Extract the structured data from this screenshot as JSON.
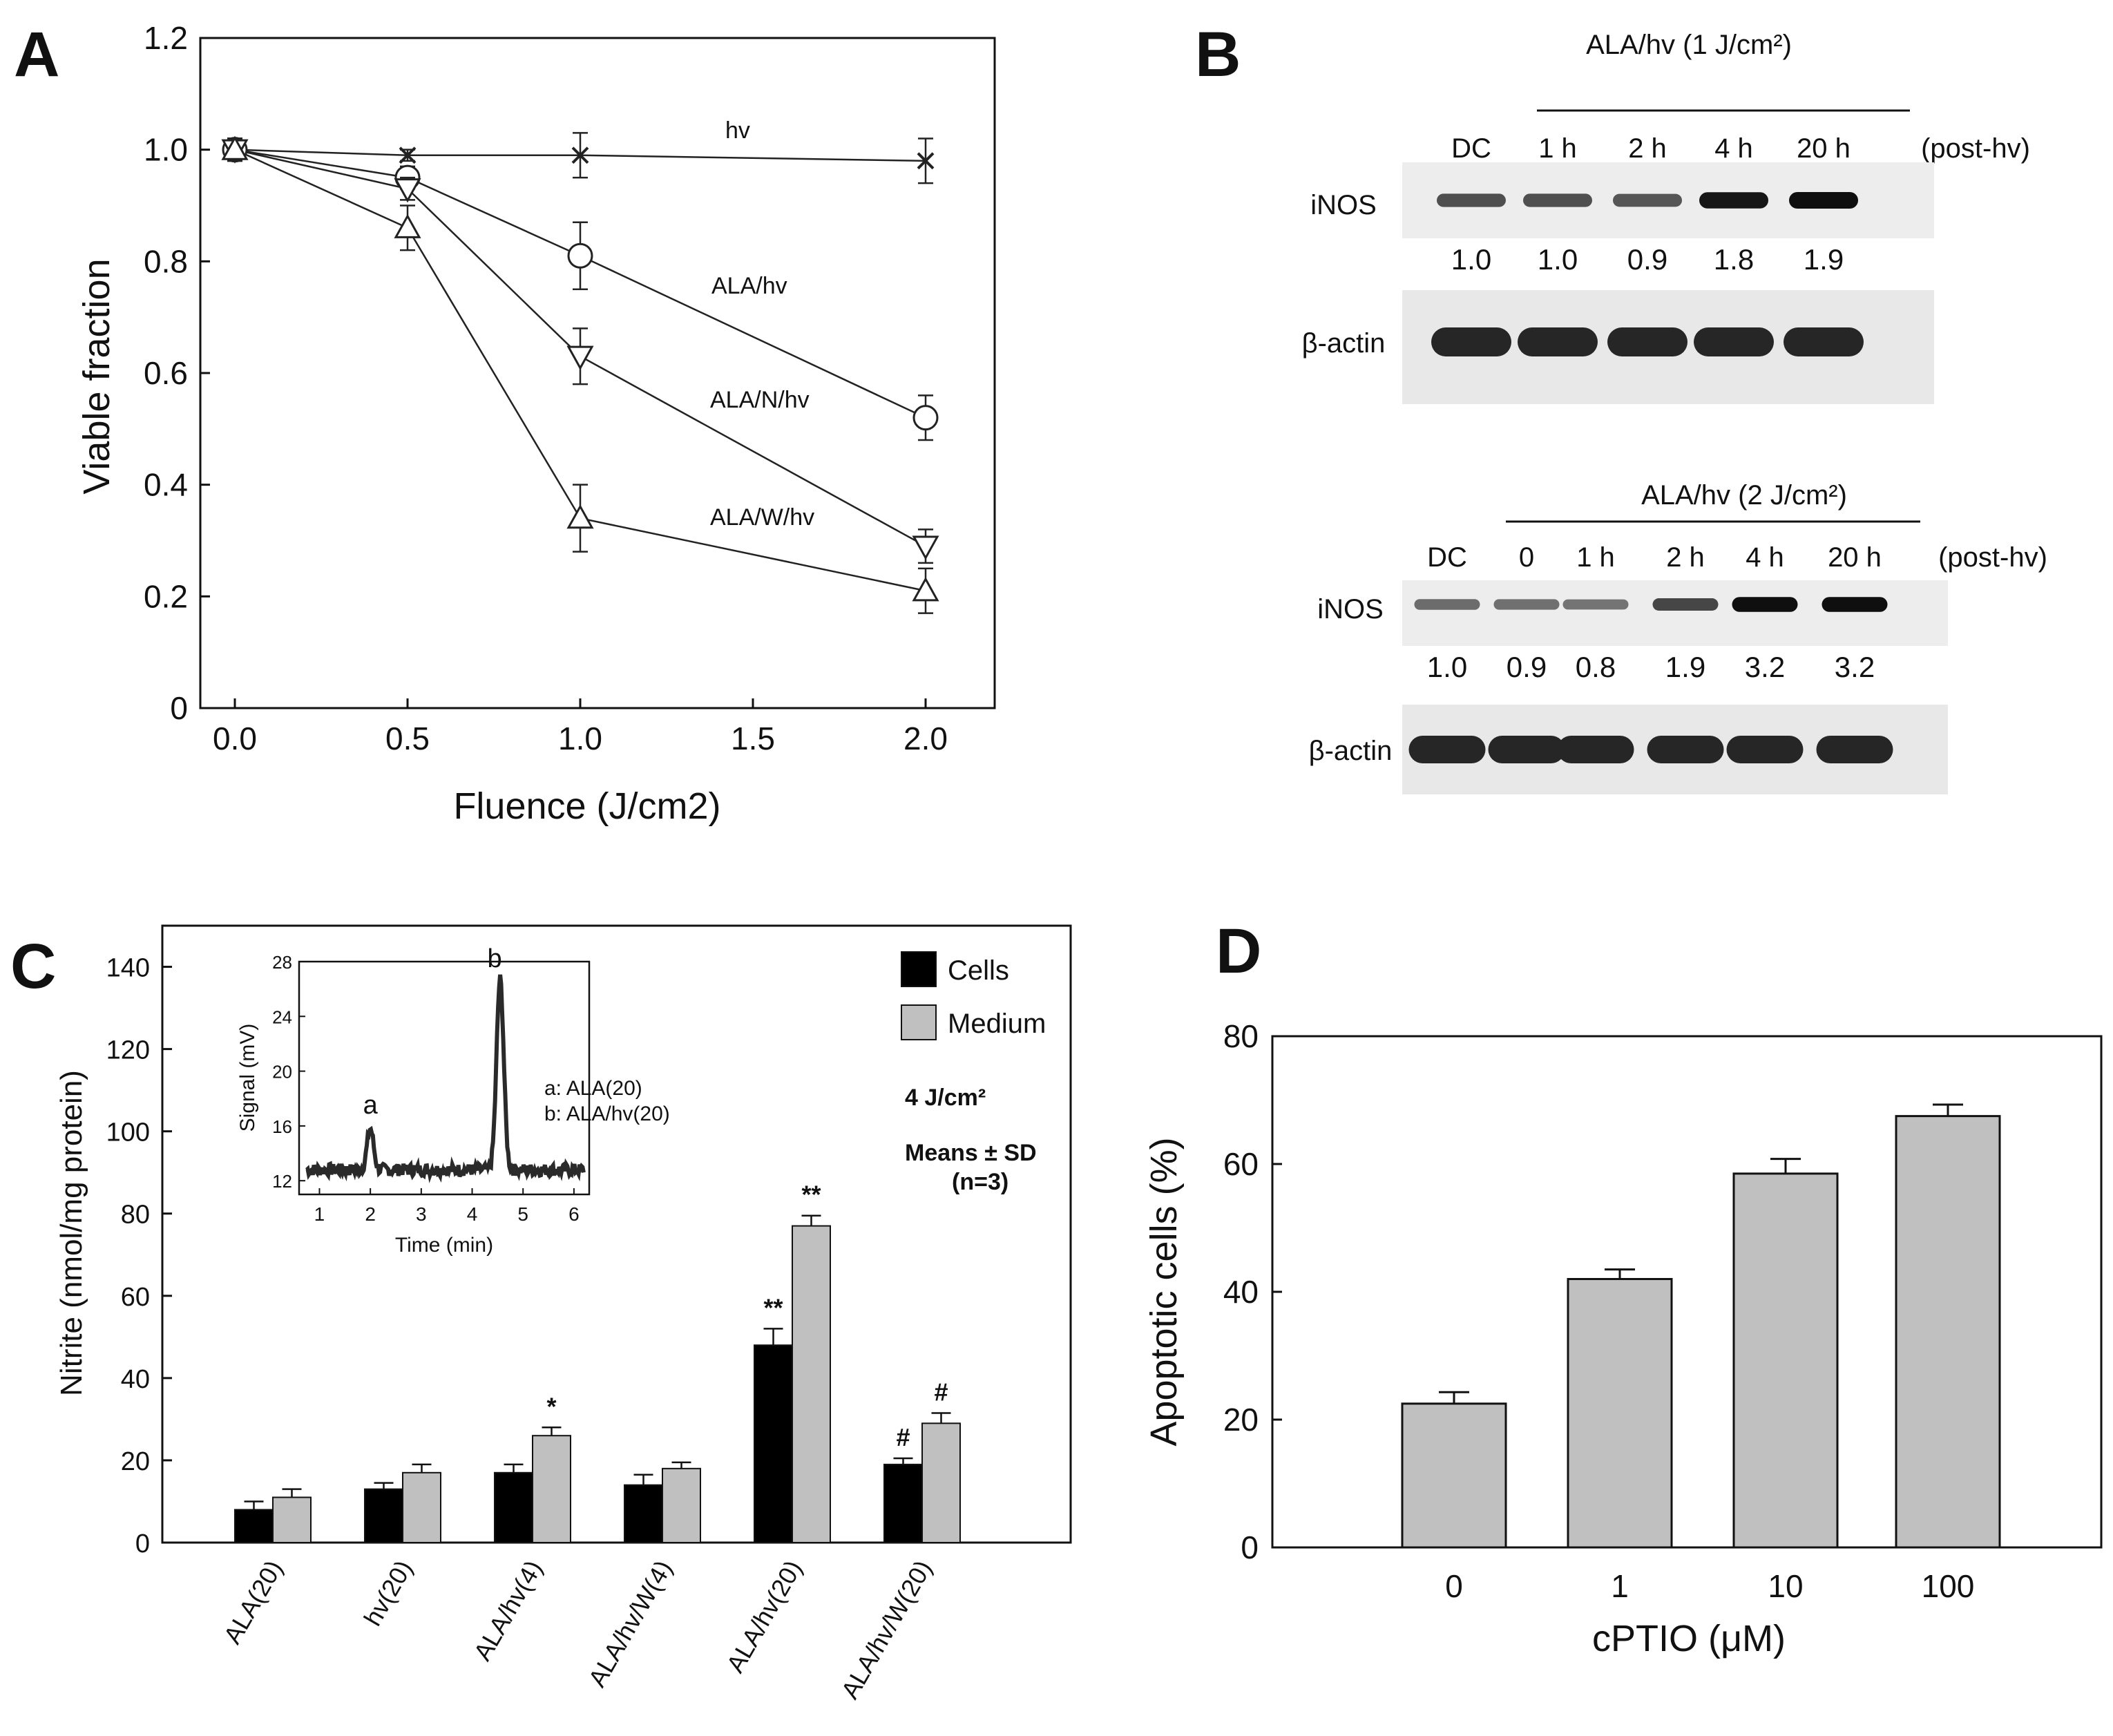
{
  "chart_data": [
    {
      "panel": "A",
      "type": "line",
      "xlabel": "Fluence (J/cm2)",
      "ylabel": "Viable fraction",
      "xlim": [
        -0.1,
        2.2
      ],
      "ylim": [
        0,
        1.2
      ],
      "xticks": [
        "0.0",
        "0.5",
        "1.0",
        "1.5",
        "2.0"
      ],
      "yticks": [
        "0",
        "0.2",
        "0.4",
        "0.6",
        "0.8",
        "1.0",
        "1.2"
      ],
      "grid": false,
      "series": [
        {
          "name": "hv",
          "marker": "x",
          "x": [
            0,
            0.5,
            1.0,
            2.0
          ],
          "y": [
            1.0,
            0.99,
            0.99,
            0.98
          ],
          "err": [
            0.02,
            0.01,
            0.04,
            0.04
          ]
        },
        {
          "name": "ALA/hv",
          "marker": "circle",
          "x": [
            0,
            0.5,
            1.0,
            2.0
          ],
          "y": [
            1.0,
            0.95,
            0.81,
            0.52
          ],
          "err": [
            0.02,
            0.02,
            0.06,
            0.04
          ]
        },
        {
          "name": "ALA/N/hv",
          "marker": "triangle-down",
          "x": [
            0,
            0.5,
            1.0,
            2.0
          ],
          "y": [
            1.0,
            0.93,
            0.63,
            0.29
          ],
          "err": [
            0.02,
            0.02,
            0.05,
            0.03
          ]
        },
        {
          "name": "ALA/W/hv",
          "marker": "triangle-up",
          "x": [
            0,
            0.5,
            1.0,
            2.0
          ],
          "y": [
            1.0,
            0.86,
            0.34,
            0.21
          ],
          "err": [
            0.02,
            0.04,
            0.06,
            0.04
          ]
        }
      ]
    },
    {
      "panel": "B",
      "type": "table",
      "blots": [
        {
          "header": "ALA/hv (1 J/cm²)",
          "lanes": [
            "DC",
            "1 h",
            "2 h",
            "4 h",
            "20 h"
          ],
          "post": "(post-hv)",
          "rows": [
            {
              "label": "iNOS",
              "values": [
                "1.0",
                "1.0",
                "0.9",
                "1.8",
                "1.9"
              ],
              "intensity": [
                1.0,
                1.0,
                0.9,
                1.8,
                1.9
              ]
            },
            {
              "label": "β-actin"
            }
          ]
        },
        {
          "header": "ALA/hv (2 J/cm²)",
          "lanes": [
            "DC",
            "0",
            "1 h",
            "2 h",
            "4 h",
            "20 h"
          ],
          "post": "(post-hv)",
          "rows": [
            {
              "label": "iNOS",
              "values": [
                "1.0",
                "0.9",
                "0.8",
                "1.9",
                "3.2",
                "3.2"
              ],
              "intensity": [
                1.0,
                0.9,
                0.8,
                1.9,
                3.2,
                3.2
              ]
            },
            {
              "label": "β-actin"
            }
          ]
        }
      ]
    },
    {
      "panel": "C",
      "type": "bar",
      "ylabel": "Nitrite (nmol/mg protein)",
      "ylim": [
        0,
        150
      ],
      "yticks": [
        "0",
        "20",
        "40",
        "60",
        "80",
        "100",
        "120",
        "140"
      ],
      "categories": [
        "ALA(20)",
        "hv(20)",
        "ALA/hv(4)",
        "ALA/hv/W(4)",
        "ALA/hv(20)",
        "ALA/hv/W(20)"
      ],
      "series": [
        {
          "name": "Cells",
          "color": "#000000",
          "values": [
            8,
            13,
            17,
            14,
            48,
            19
          ],
          "err": [
            2,
            1.5,
            2,
            2.5,
            4,
            1.5
          ]
        },
        {
          "name": "Medium",
          "color": "#c0c0c0",
          "values": [
            11,
            17,
            26,
            18,
            77,
            29
          ],
          "err": [
            2,
            2,
            2,
            1.5,
            2.5,
            2.5
          ]
        }
      ],
      "annotations": [
        {
          "category": 2,
          "series": "Medium",
          "text": "*"
        },
        {
          "category": 4,
          "series": "Cells",
          "text": "**"
        },
        {
          "category": 4,
          "series": "Medium",
          "text": "**"
        },
        {
          "category": 5,
          "series": "Cells",
          "text": "#"
        },
        {
          "category": 5,
          "series": "Medium",
          "text": "#"
        }
      ],
      "notes": [
        "4 J/cm²",
        "Means ± SD",
        "(n=3)"
      ],
      "legend": "top-right",
      "inset": {
        "type": "line",
        "xlabel": "Time (min)",
        "ylabel": "Signal (mV)",
        "xlim": [
          0.6,
          6.3
        ],
        "ylim": [
          11,
          28
        ],
        "xticks": [
          "1",
          "2",
          "3",
          "4",
          "5",
          "6"
        ],
        "yticks": [
          "12",
          "16",
          "20",
          "24",
          "28"
        ],
        "peaks": [
          {
            "label": "a",
            "x": 2.0,
            "y": 15.8
          },
          {
            "label": "b",
            "x": 4.55,
            "y": 26.7
          }
        ],
        "legend_lines": [
          "a: ALA(20)",
          "b: ALA/hv(20)"
        ]
      }
    },
    {
      "panel": "D",
      "type": "bar",
      "xlabel": "cPTIO (μM)",
      "ylabel": "Apoptotic  cells (%)",
      "ylim": [
        0,
        80
      ],
      "yticks": [
        "0",
        "20",
        "40",
        "60",
        "80"
      ],
      "categories": [
        "0",
        "1",
        "10",
        "100"
      ],
      "values": [
        22.5,
        42,
        58.5,
        67.5
      ],
      "err": [
        1.8,
        1.5,
        2.3,
        1.8
      ],
      "color": "#c0c0c0"
    }
  ]
}
